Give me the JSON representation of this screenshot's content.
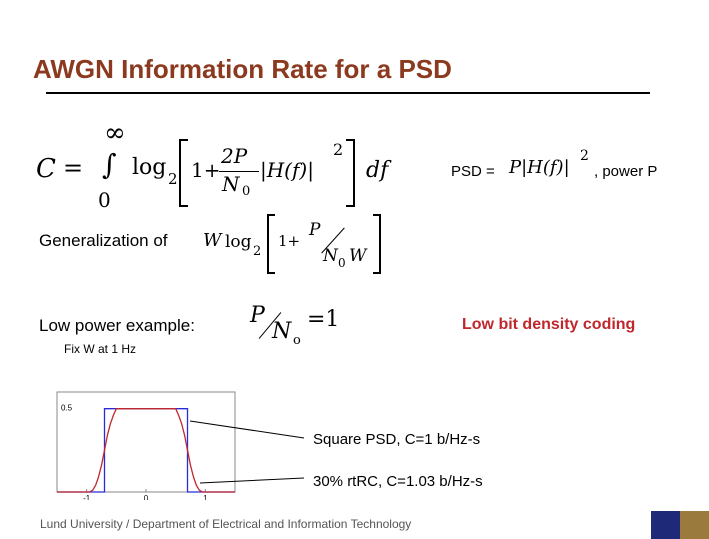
{
  "slide": {
    "title": "AWGN Information Rate for a PSD",
    "formula": {
      "lhs": "C",
      "eq": "=",
      "upper": "∞",
      "integral": "∫",
      "lower": "0",
      "log": "log",
      "base": "2",
      "one": "1+",
      "num": "2P",
      "den": "N",
      "den_sub": "0",
      "hf": "|H(f)|",
      "sq": "2",
      "df": "df"
    },
    "psd": {
      "label": "PSD =",
      "expr": "P|H(f)|",
      "sq": "2",
      "suffix": ", power P"
    },
    "generalization": {
      "label": "Generalization of",
      "w": "W",
      "log": "log",
      "base": "2",
      "one": "1+",
      "num": "P",
      "den": "N",
      "den_sub": "0",
      "den_w": "W"
    },
    "low_power": {
      "label": "Low power example:",
      "num": "P",
      "den": "N",
      "den_sub": "o",
      "eq": "=1",
      "coding": "Low bit density coding"
    },
    "fix_w": "Fix W at 1 Hz",
    "chart_labels": {
      "y_tick": "0.5",
      "x_ticks": [
        "-1",
        "0",
        "1"
      ]
    },
    "callouts": {
      "square": "Square PSD,   C=1 b/Hz-s",
      "rtrc": "30% rtRC,   C=1.03 b/Hz-s"
    },
    "footer": "Lund University / Department of Electrical and Information Technology",
    "colors": {
      "title": "#8b3a1f",
      "highlight": "#c0272d",
      "square": "#2b2bd6",
      "rtrc": "#c0272d",
      "logo_left": "#1e2a78",
      "logo_right": "#9b7a3e"
    }
  },
  "chart_data": {
    "type": "line",
    "x_ticks": [
      "-1",
      "0",
      "1"
    ],
    "y_ticks": [
      "0.5"
    ],
    "xlim": [
      -1.5,
      1.5
    ],
    "ylim": [
      0,
      0.6
    ],
    "series": [
      {
        "x": [
          -1.5,
          -0.7,
          -0.7,
          0.7,
          0.7,
          1.5
        ],
        "y": [
          0,
          0,
          0.5,
          0.5,
          0,
          0
        ]
      },
      {
        "x": [
          -1.5,
          -0.95,
          -0.9,
          -0.85,
          -0.8,
          -0.75,
          -0.7,
          -0.65,
          -0.6,
          -0.55,
          -0.5,
          0,
          0.5,
          0.55,
          0.6,
          0.65,
          0.7,
          0.75,
          0.8,
          0.85,
          0.9,
          0.95,
          1.5
        ],
        "y": [
          0,
          0,
          0.01,
          0.04,
          0.09,
          0.16,
          0.25,
          0.34,
          0.41,
          0.46,
          0.5,
          0.5,
          0.5,
          0.46,
          0.41,
          0.34,
          0.25,
          0.16,
          0.09,
          0.04,
          0.01,
          0,
          0
        ]
      }
    ]
  }
}
